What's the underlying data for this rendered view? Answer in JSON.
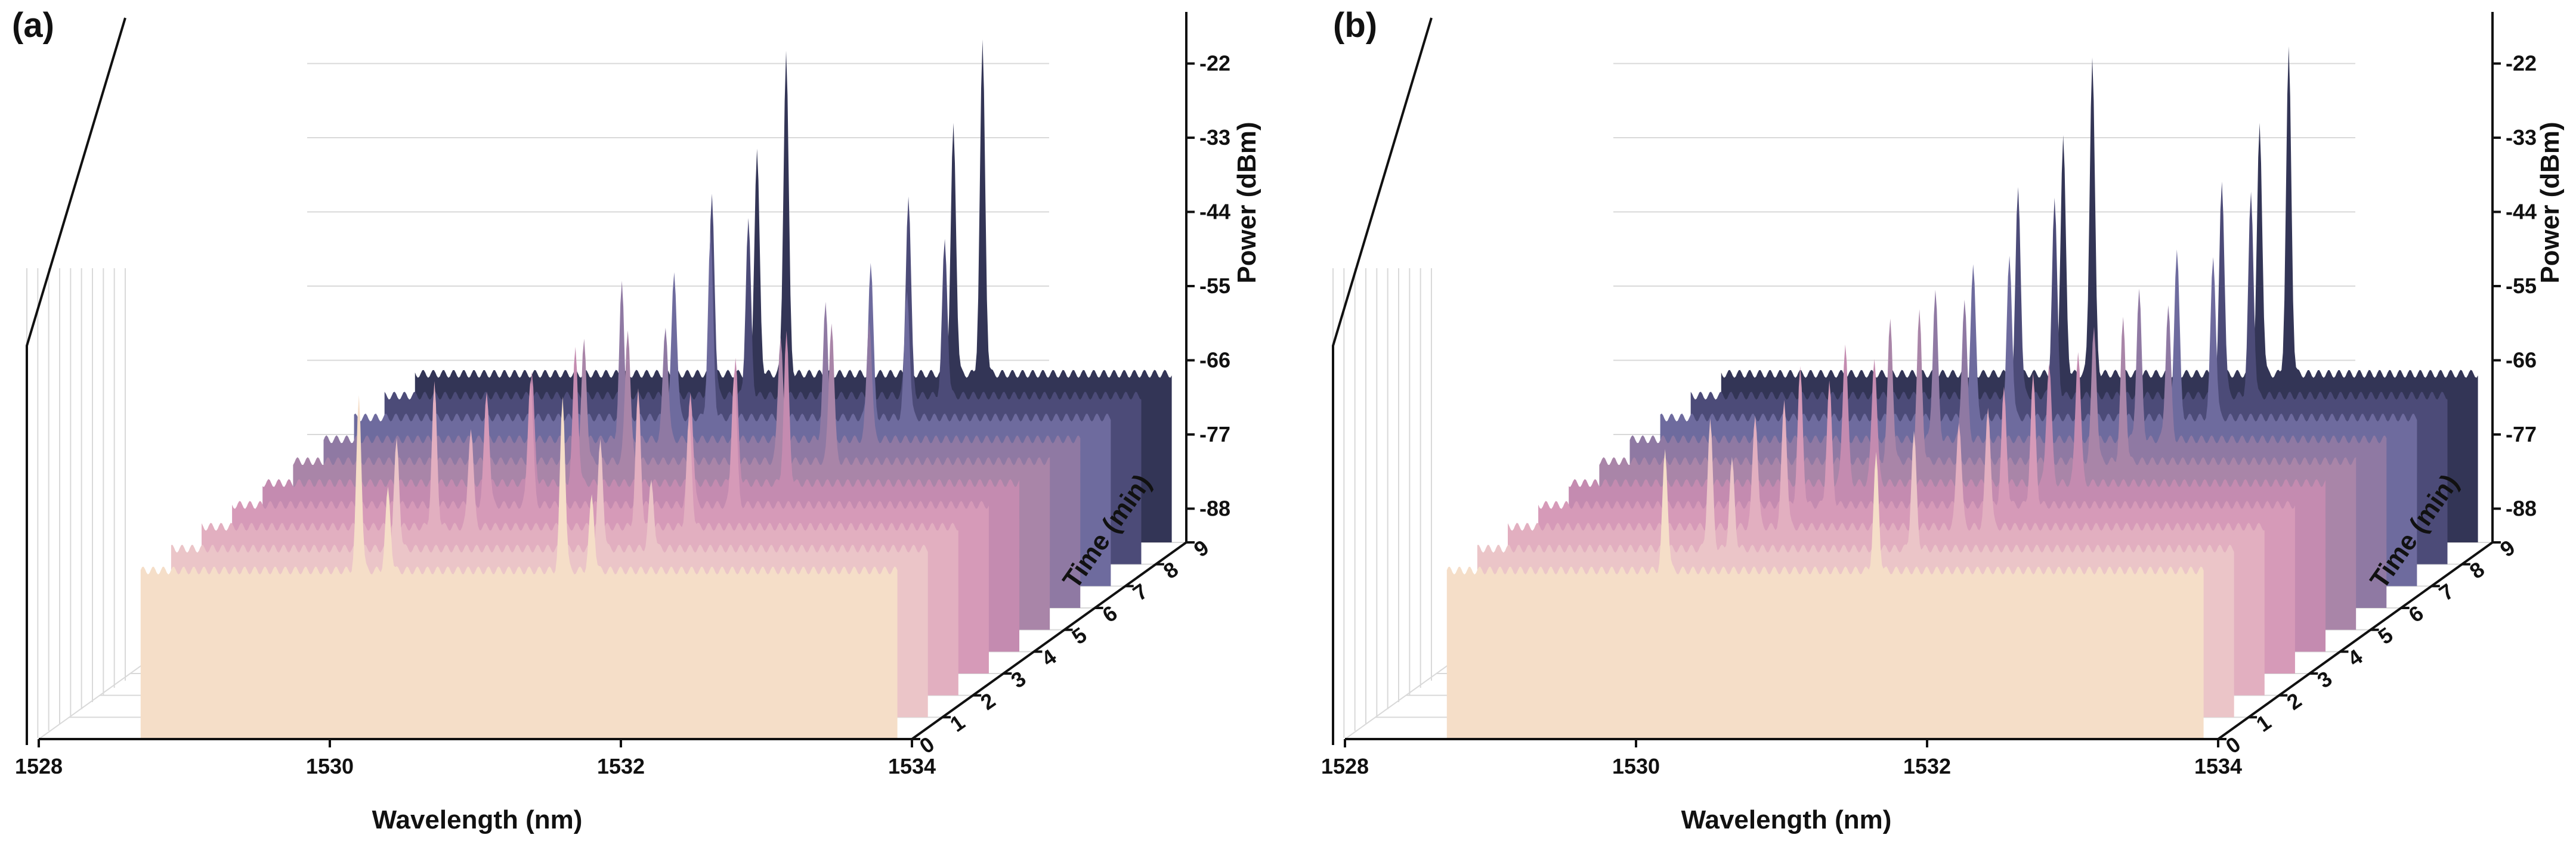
{
  "chart_data": [
    {
      "type": "area",
      "panel_label": "(a)",
      "xlabel": "Wavelength (nm)",
      "ylabel": "Power (dBm)",
      "zlabel": "Time (min)",
      "xlim": [
        1528,
        1534
      ],
      "xticks": [
        "1528",
        "1530",
        "1532",
        "1534"
      ],
      "ylim": [
        -93,
        -17
      ],
      "yticks": [
        "-22",
        "-33",
        "-44",
        "-55",
        "-66",
        "-77",
        "-88"
      ],
      "zticks": [
        "0",
        "1",
        "2",
        "3",
        "4",
        "5",
        "6",
        "7",
        "8",
        "9"
      ],
      "colors": [
        "#F5DEC8",
        "#EBC5C8",
        "#E2AFC0",
        "#D69AB8",
        "#C48BB0",
        "#A985A8",
        "#8F79A3",
        "#6E6B9E",
        "#4C4B78",
        "#333556"
      ],
      "baseline_dbm": -68,
      "band_edges_nm": [
        1528.7,
        1533.9
      ],
      "notches": [
        {
          "center_nm": 1529.95,
          "depth_dbm": 10
        },
        {
          "center_nm": 1531.4,
          "depth_dbm": 10
        },
        {
          "center_nm": 1532.85,
          "depth_dbm": 10
        }
      ],
      "series": [
        {
          "name": "0",
          "peaks": [
            {
              "wl": 1530.2,
              "dbm": -42
            },
            {
              "wl": 1530.4,
              "dbm": -56
            },
            {
              "wl": 1531.6,
              "dbm": -42
            },
            {
              "wl": 1531.8,
              "dbm": -57
            }
          ]
        },
        {
          "name": "1",
          "peaks": [
            {
              "wl": 1530.25,
              "dbm": -52
            },
            {
              "wl": 1531.65,
              "dbm": -52
            },
            {
              "wl": 1532.0,
              "dbm": -58
            }
          ]
        },
        {
          "name": "2",
          "peaks": [
            {
              "wl": 1530.3,
              "dbm": -47
            },
            {
              "wl": 1530.55,
              "dbm": -53
            },
            {
              "wl": 1531.7,
              "dbm": -48
            },
            {
              "wl": 1532.05,
              "dbm": -52
            }
          ]
        },
        {
          "name": "3",
          "peaks": [
            {
              "wl": 1530.45,
              "dbm": -51
            },
            {
              "wl": 1530.75,
              "dbm": -49
            },
            {
              "wl": 1531.85,
              "dbm": -51
            },
            {
              "wl": 1532.15,
              "dbm": -48
            }
          ]
        },
        {
          "name": "4",
          "peaks": [
            {
              "wl": 1530.55,
              "dbm": -52
            },
            {
              "wl": 1530.85,
              "dbm": -48
            },
            {
              "wl": 1531.95,
              "dbm": -50
            },
            {
              "wl": 1532.3,
              "dbm": -46
            }
          ]
        },
        {
          "name": "5",
          "peaks": [
            {
              "wl": 1530.7,
              "dbm": -50
            },
            {
              "wl": 1531.0,
              "dbm": -48
            },
            {
              "wl": 1532.05,
              "dbm": -49
            },
            {
              "wl": 1532.4,
              "dbm": -47
            }
          ]
        },
        {
          "name": "6",
          "peaks": [
            {
              "wl": 1530.75,
              "dbm": -45
            },
            {
              "wl": 1531.05,
              "dbm": -51
            },
            {
              "wl": 1532.15,
              "dbm": -48
            },
            {
              "wl": 1532.45,
              "dbm": -50
            }
          ]
        },
        {
          "name": "7",
          "peaks": [
            {
              "wl": 1530.9,
              "dbm": -46
            },
            {
              "wl": 1531.15,
              "dbm": -41
            },
            {
              "wl": 1532.25,
              "dbm": -45
            },
            {
              "wl": 1532.5,
              "dbm": -49
            }
          ]
        },
        {
          "name": "8",
          "peaks": [
            {
              "wl": 1530.95,
              "dbm": -38
            },
            {
              "wl": 1531.2,
              "dbm": -42
            },
            {
              "wl": 1532.3,
              "dbm": -38
            },
            {
              "wl": 1532.55,
              "dbm": -45
            }
          ]
        },
        {
          "name": "9",
          "peaks": [
            {
              "wl": 1531.05,
              "dbm": -35
            },
            {
              "wl": 1531.25,
              "dbm": -20
            },
            {
              "wl": 1532.4,
              "dbm": -31
            },
            {
              "wl": 1532.6,
              "dbm": -19
            }
          ]
        }
      ]
    },
    {
      "type": "area",
      "panel_label": "(b)",
      "xlabel": "Wavelength (nm)",
      "ylabel": "Power (dBm)",
      "zlabel": "Time (min)",
      "xlim": [
        1528,
        1534
      ],
      "xticks": [
        "1528",
        "1530",
        "1532",
        "1534"
      ],
      "ylim": [
        -93,
        -17
      ],
      "yticks": [
        "-22",
        "-33",
        "-44",
        "-55",
        "-66",
        "-77",
        "-88"
      ],
      "zticks": [
        "0",
        "1",
        "2",
        "3",
        "4",
        "5",
        "6",
        "7",
        "8",
        "9"
      ],
      "colors": [
        "#F5DEC8",
        "#EBC5C8",
        "#E2AFC0",
        "#D69AB8",
        "#C48BB0",
        "#A985A8",
        "#8F79A3",
        "#6E6B9E",
        "#4C4B78",
        "#333556"
      ],
      "baseline_dbm": -68,
      "band_edges_nm": [
        1528.7,
        1533.9
      ],
      "notches": [
        {
          "center_nm": 1529.5,
          "depth_dbm": 10
        },
        {
          "center_nm": 1530.4,
          "depth_dbm": 10
        },
        {
          "center_nm": 1531.3,
          "depth_dbm": 10
        },
        {
          "center_nm": 1532.2,
          "depth_dbm": 10
        },
        {
          "center_nm": 1533.1,
          "depth_dbm": 10
        }
      ],
      "series": [
        {
          "name": "0",
          "peaks": [
            {
              "wl": 1530.2,
              "dbm": -50
            },
            {
              "wl": 1531.65,
              "dbm": -51
            }
          ]
        },
        {
          "name": "1",
          "peaks": [
            {
              "wl": 1530.3,
              "dbm": -49
            },
            {
              "wl": 1530.45,
              "dbm": -55
            },
            {
              "wl": 1531.7,
              "dbm": -51
            }
          ]
        },
        {
          "name": "2",
          "peaks": [
            {
              "wl": 1530.4,
              "dbm": -51
            },
            {
              "wl": 1530.6,
              "dbm": -49
            },
            {
              "wl": 1531.8,
              "dbm": -52
            },
            {
              "wl": 1532.0,
              "dbm": -50
            }
          ]
        },
        {
          "name": "3",
          "peaks": [
            {
              "wl": 1530.5,
              "dbm": -48
            },
            {
              "wl": 1530.7,
              "dbm": -50
            },
            {
              "wl": 1531.9,
              "dbm": -51
            },
            {
              "wl": 1532.1,
              "dbm": -49
            }
          ]
        },
        {
          "name": "4",
          "peaks": [
            {
              "wl": 1530.6,
              "dbm": -47
            },
            {
              "wl": 1530.8,
              "dbm": -49
            },
            {
              "wl": 1532.0,
              "dbm": -50
            },
            {
              "wl": 1532.2,
              "dbm": -48
            }
          ]
        },
        {
          "name": "5",
          "peaks": [
            {
              "wl": 1530.7,
              "dbm": -47
            },
            {
              "wl": 1530.9,
              "dbm": -46
            },
            {
              "wl": 1532.1,
              "dbm": -48
            },
            {
              "wl": 1532.3,
              "dbm": -47
            }
          ]
        },
        {
          "name": "6",
          "peaks": [
            {
              "wl": 1530.8,
              "dbm": -46
            },
            {
              "wl": 1531.0,
              "dbm": -47
            },
            {
              "wl": 1532.2,
              "dbm": -46
            },
            {
              "wl": 1532.4,
              "dbm": -48
            }
          ]
        },
        {
          "name": "7",
          "peaks": [
            {
              "wl": 1530.85,
              "dbm": -45
            },
            {
              "wl": 1531.1,
              "dbm": -44
            },
            {
              "wl": 1532.25,
              "dbm": -43
            },
            {
              "wl": 1532.5,
              "dbm": -44
            }
          ]
        },
        {
          "name": "8",
          "peaks": [
            {
              "wl": 1530.95,
              "dbm": -37
            },
            {
              "wl": 1531.2,
              "dbm": -39
            },
            {
              "wl": 1532.35,
              "dbm": -36
            },
            {
              "wl": 1532.55,
              "dbm": -38
            }
          ]
        },
        {
          "name": "9",
          "peaks": [
            {
              "wl": 1531.05,
              "dbm": -33
            },
            {
              "wl": 1531.25,
              "dbm": -21
            },
            {
              "wl": 1532.4,
              "dbm": -31
            },
            {
              "wl": 1532.6,
              "dbm": -20
            }
          ]
        }
      ]
    }
  ]
}
